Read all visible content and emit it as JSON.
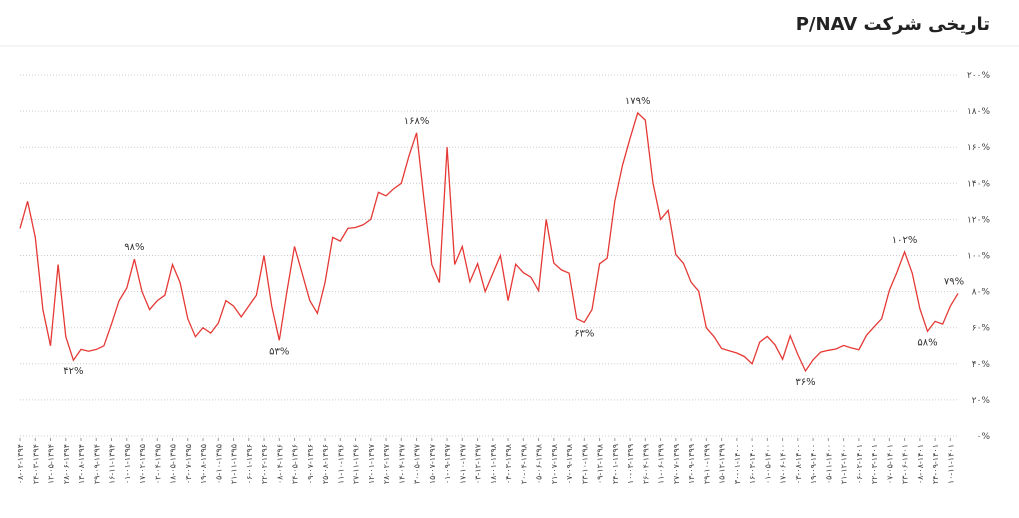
{
  "chart_data": {
    "type": "line",
    "title": "P/NAV تاریخی شرکت",
    "categories": [
      "۰۸-۰۲-۱۳۹۴",
      null,
      "۲۴-۰۳-۱۳۹۴",
      null,
      "۱۲-۰۵-۱۳۹۴",
      null,
      "۲۸-۰۶-۱۳۹۴",
      null,
      "۱۳-۰۸-۱۳۹۴",
      null,
      "۲۹-۰۹-۱۳۹۴",
      null,
      "۱۶-۱۱-۱۳۹۴",
      null,
      "۰۱-۰۱-۱۳۹۵",
      null,
      "۱۷-۰۲-۱۳۹۵",
      null,
      "۰۲-۰۴-۱۳۹۵",
      null,
      "۱۸-۰۵-۱۳۹۵",
      null,
      "۰۳-۰۷-۱۳۹۵",
      null,
      "۱۹-۰۸-۱۳۹۵",
      null,
      "۰۵-۱۰-۱۳۹۵",
      null,
      "۲۱-۱۱-۱۳۹۵",
      null,
      "۰۶-۰۱-۱۳۹۶",
      null,
      "۲۲-۰۲-۱۳۹۶",
      null,
      "۰۸-۰۴-۱۳۹۶",
      null,
      "۲۴-۰۵-۱۳۹۶",
      null,
      "۰۹-۰۷-۱۳۹۶",
      null,
      "۲۵-۰۸-۱۳۹۶",
      null,
      "۱۱-۱۰-۱۳۹۶",
      null,
      "۲۷-۱۱-۱۳۹۶",
      null,
      "۱۲-۰۱-۱۳۹۷",
      null,
      "۲۸-۰۲-۱۳۹۷",
      null,
      "۱۴-۰۴-۱۳۹۷",
      null,
      "۳۰-۰۵-۱۳۹۷",
      null,
      "۱۵-۰۷-۱۳۹۷",
      null,
      "۰۱-۰۹-۱۳۹۷",
      null,
      "۱۷-۱۰-۱۳۹۷",
      null,
      "۰۳-۱۲-۱۳۹۷",
      null,
      "۱۸-۰۱-۱۳۹۸",
      null,
      "۰۴-۰۳-۱۳۹۸",
      null,
      "۲۰-۰۴-۱۳۹۸",
      null,
      "۰۵-۰۶-۱۳۹۸",
      null,
      "۲۱-۰۷-۱۳۹۸",
      null,
      "۰۷-۰۹-۱۳۹۸",
      null,
      "۲۳-۱۰-۱۳۹۸",
      null,
      "۰۹-۱۲-۱۳۹۸",
      null,
      "۲۴-۰۱-۱۳۹۹",
      null,
      "۱۰-۰۳-۱۳۹۹",
      null,
      "۲۶-۰۴-۱۳۹۹",
      null,
      "۱۱-۰۶-۱۳۹۹",
      null,
      "۲۷-۰۷-۱۳۹۹",
      null,
      "۱۳-۰۹-۱۳۹۹",
      null,
      "۲۹-۱۰-۱۳۹۹",
      null,
      "۱۵-۱۲-۱۳۹۹",
      null,
      "۳۰-۰۱-۱۴۰۰",
      null,
      "۱۶-۰۳-۱۴۰۰",
      null,
      "۰۱-۰۵-۱۴۰۰",
      null,
      "۱۷-۰۶-۱۴۰۰",
      null,
      "۰۳-۰۸-۱۴۰۰",
      null,
      "۱۹-۰۹-۱۴۰۰",
      null,
      "۰۵-۱۱-۱۴۰۰",
      null,
      "۲۱-۱۲-۱۴۰۰",
      null,
      "۰۶-۰۲-۱۴۰۱",
      null,
      "۲۲-۰۳-۱۴۰۱",
      null,
      "۰۷-۰۵-۱۴۰۱",
      null,
      "۲۳-۰۶-۱۴۰۱",
      null,
      "۰۸-۰۸-۱۴۰۱",
      null,
      "۲۴-۰۹-۱۴۰۱",
      null,
      "۱۰-۱۱-۱۴۰۱",
      null
    ],
    "series": [
      {
        "color": "#e53935",
        "values": [
          115,
          130,
          110,
          70,
          50,
          95,
          55,
          42,
          48,
          47,
          48,
          50,
          62,
          75,
          82,
          98,
          80,
          70,
          75,
          78,
          95,
          85,
          65,
          55,
          60,
          57,
          62.5,
          75,
          72,
          66,
          72,
          78,
          100,
          72,
          53,
          80,
          105,
          90,
          75,
          68,
          85,
          110,
          108,
          115,
          115.5,
          117,
          120,
          135,
          133,
          137,
          140,
          155,
          168,
          130,
          95,
          85,
          160,
          95,
          105,
          85.5,
          95.5,
          80,
          90,
          100,
          75,
          95.2,
          90.5,
          88,
          80.5,
          120,
          95.8,
          92,
          90.2,
          65,
          63,
          70,
          95.4,
          98.5,
          130,
          150,
          165,
          179,
          175,
          140,
          120,
          125,
          100.5,
          95.6,
          85.2,
          80.2,
          60,
          55,
          48.5,
          47.2,
          46,
          44,
          40,
          52,
          55.2,
          50.5,
          42.5,
          55.5,
          45,
          36,
          42.2,
          46.5,
          47.5,
          48.2,
          50.2,
          48.8,
          47.8,
          55.8,
          60.5,
          65,
          80.8,
          90.8,
          102,
          90.3,
          70.5,
          58,
          63.5,
          62,
          72,
          79
        ]
      }
    ],
    "ylim": [
      0,
      200
    ],
    "yticks": [
      {
        "value": 0,
        "label": "۰%"
      },
      {
        "value": 20,
        "label": "۲۰%"
      },
      {
        "value": 40,
        "label": "۴۰%"
      },
      {
        "value": 60,
        "label": "۶۰%"
      },
      {
        "value": 80,
        "label": "۸۰%"
      },
      {
        "value": 100,
        "label": "۱۰۰%"
      },
      {
        "value": 120,
        "label": "۱۲۰%"
      },
      {
        "value": 140,
        "label": "۱۴۰%"
      },
      {
        "value": 160,
        "label": "۱۶۰%"
      },
      {
        "value": 180,
        "label": "۱۸۰%"
      },
      {
        "value": 200,
        "label": "۲۰۰%"
      }
    ],
    "grid": true,
    "annotations": [
      {
        "text": "۴۲%",
        "value": 42
      },
      {
        "text": "۹۸%",
        "value": 98
      },
      {
        "text": "۵۳%",
        "value": 53
      },
      {
        "text": "۱۶۸%",
        "value": 168
      },
      {
        "text": "۶۳%",
        "value": 63
      },
      {
        "text": "۱۷۹%",
        "value": 179
      },
      {
        "text": "۳۶%",
        "value": 36
      },
      {
        "text": "۱۰۲%",
        "value": 102
      },
      {
        "text": "۵۸%",
        "value": 58
      },
      {
        "text": "۷۹%",
        "value": 79
      }
    ]
  }
}
